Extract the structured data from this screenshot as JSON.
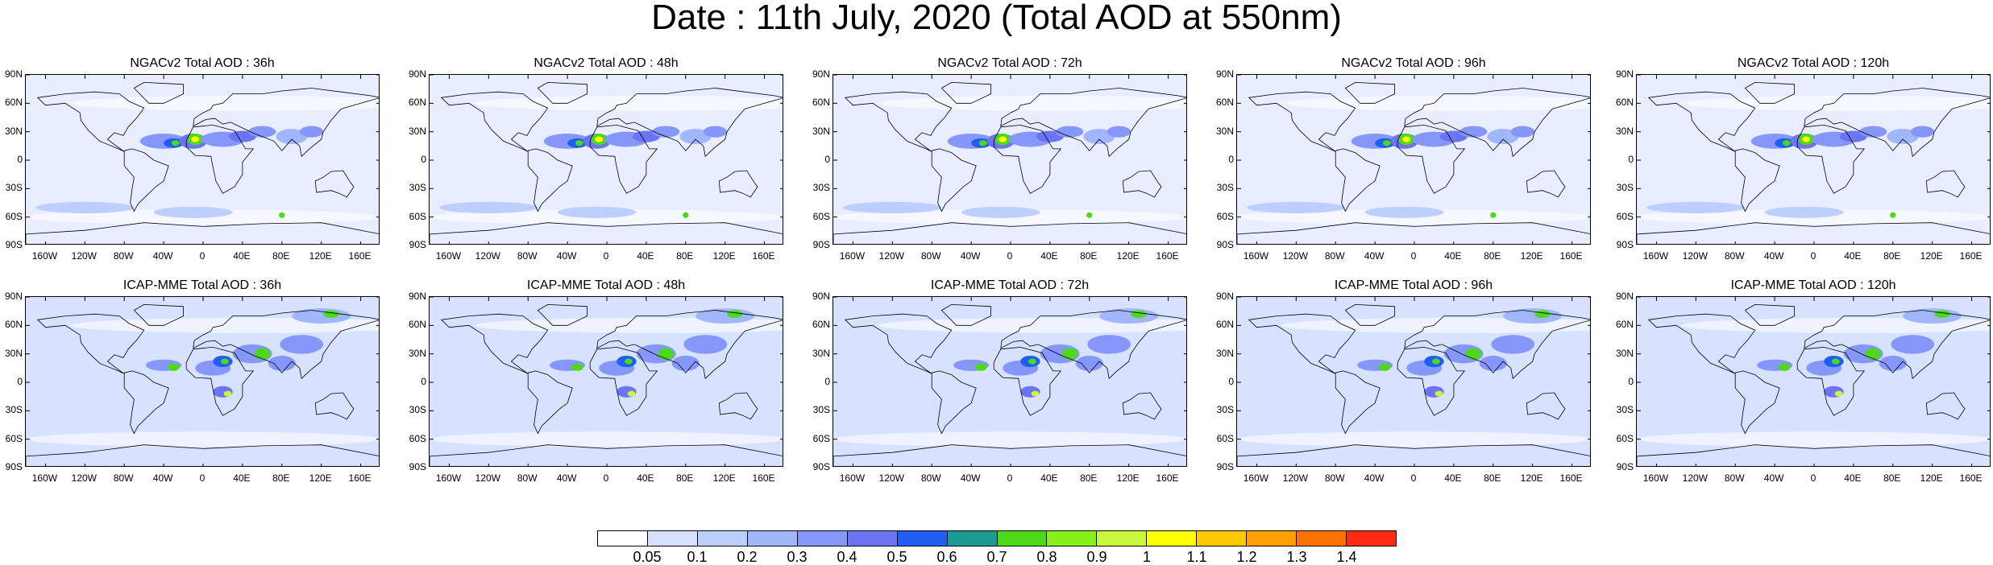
{
  "title": "Date : 11th July, 2020 (Total AOD at 550nm)",
  "panels": [
    {
      "title": "NGACv2 Total AOD : 36h"
    },
    {
      "title": "NGACv2 Total AOD : 48h"
    },
    {
      "title": "NGACv2 Total AOD : 72h"
    },
    {
      "title": "NGACv2 Total AOD : 96h"
    },
    {
      "title": "NGACv2 Total AOD : 120h"
    },
    {
      "title": "ICAP-MME Total AOD : 36h"
    },
    {
      "title": "ICAP-MME Total AOD : 48h"
    },
    {
      "title": "ICAP-MME Total AOD : 72h"
    },
    {
      "title": "ICAP-MME Total AOD : 96h"
    },
    {
      "title": "ICAP-MME Total AOD : 120h"
    }
  ],
  "lat_ticks": [
    "90N",
    "60N",
    "30N",
    "0",
    "30S",
    "60S",
    "90S"
  ],
  "lon_ticks": [
    "160W",
    "120W",
    "80W",
    "40W",
    "0",
    "40E",
    "80E",
    "120E",
    "160E"
  ],
  "colorbar": {
    "colors": [
      "#ffffff",
      "#d6e2ff",
      "#bccfff",
      "#a0b6fd",
      "#8597fb",
      "#6c74f4",
      "#1f5ef0",
      "#1a9a92",
      "#4bd91a",
      "#87f11a",
      "#c9f73c",
      "#ffff00",
      "#ffc800",
      "#ffa000",
      "#ff7200",
      "#ff2a10"
    ],
    "labels": [
      "0.05",
      "0.1",
      "0.2",
      "0.3",
      "0.4",
      "0.5",
      "0.6",
      "0.7",
      "0.8",
      "0.9",
      "1",
      "1.1",
      "1.2",
      "1.3",
      "1.4"
    ]
  }
}
